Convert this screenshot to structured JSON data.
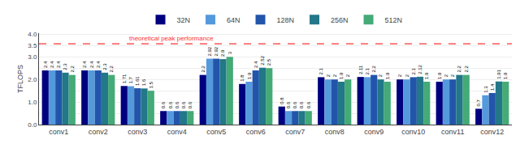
{
  "chart_data": {
    "type": "bar",
    "categories": [
      "conv1",
      "conv2",
      "conv3",
      "conv4",
      "conv5",
      "conv6",
      "conv7",
      "conv8",
      "conv9",
      "conv10",
      "conv11",
      "conv12"
    ],
    "series": [
      {
        "name": "32N",
        "color": "#00007F",
        "values": [
          2.4,
          2.4,
          1.71,
          0.6,
          2.2,
          1.8,
          0.8,
          2.1,
          2.11,
          2.0,
          1.9,
          0.7
        ]
      },
      {
        "name": "64N",
        "color": "#5599DD",
        "values": [
          2.4,
          2.4,
          1.7,
          0.6,
          2.92,
          1.9,
          0.6,
          2.0,
          2.1,
          2.0,
          2.0,
          1.3
        ]
      },
      {
        "name": "128N",
        "color": "#2255AA",
        "values": [
          2.4,
          2.4,
          1.61,
          0.6,
          2.92,
          2.4,
          0.6,
          2.0,
          2.2,
          2.1,
          2.0,
          1.4
        ]
      },
      {
        "name": "256N",
        "color": "#227788",
        "values": [
          2.3,
          2.3,
          1.6,
          0.6,
          2.9,
          2.52,
          0.6,
          1.9,
          2.0,
          2.12,
          2.2,
          1.91
        ]
      },
      {
        "name": "512N",
        "color": "#44AA77",
        "values": [
          2.2,
          2.2,
          1.5,
          0.6,
          3.0,
          2.5,
          0.6,
          2.0,
          1.9,
          1.9,
          2.2,
          1.9
        ]
      }
    ],
    "ylabel": "TFLOPS",
    "ylim": [
      0,
      4.05
    ],
    "yticks": [
      {
        "value": 0.0,
        "label": "0.0"
      },
      {
        "value": 0.5,
        "label": ""
      },
      {
        "value": 1.0,
        "label": "1.0"
      },
      {
        "value": 1.5,
        "label": ""
      },
      {
        "value": 2.0,
        "label": "2.0"
      },
      {
        "value": 2.5,
        "label": ""
      },
      {
        "value": 3.0,
        "label": "3.0"
      },
      3.5,
      {
        "value": 4.0,
        "label": "4.0"
      }
    ],
    "annotations": [
      {
        "text": "theoretical peak performance",
        "y": 3.58,
        "color": "#FF3333",
        "line_style": "dashed"
      }
    ],
    "data_labels": true,
    "grid": true,
    "legend": "top"
  }
}
